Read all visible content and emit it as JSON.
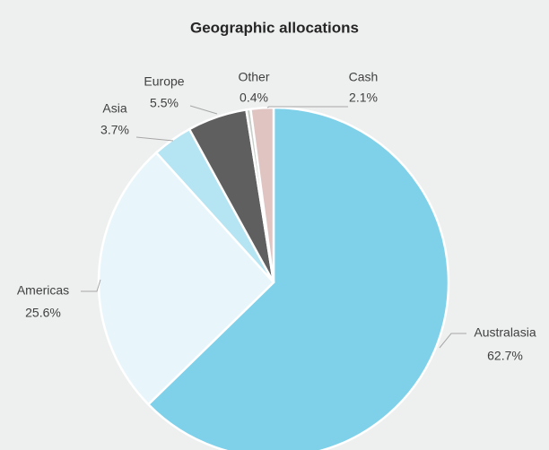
{
  "chart_data": {
    "type": "pie",
    "title": "Geographic allocations",
    "categories": [
      "Australasia",
      "Americas",
      "Asia",
      "Europe",
      "Other",
      "Cash"
    ],
    "values": [
      62.7,
      25.6,
      3.7,
      5.5,
      0.4,
      2.1
    ],
    "value_labels": [
      "62.7%",
      "25.6%",
      "3.7%",
      "5.5%",
      "0.4%",
      "2.1%"
    ],
    "colors": [
      "#7fd1ea",
      "#e8f6fb",
      "#b5e4f3",
      "#5f5f5f",
      "#c8cfc8",
      "#e0c4c2"
    ]
  }
}
